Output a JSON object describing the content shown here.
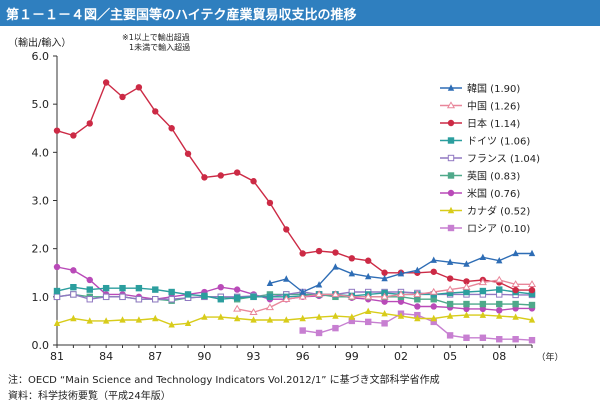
{
  "title": "第１－１－４図／主要国等のハイテク産業貿易収支比の推移",
  "notes": {
    "line1": "※1以上で輸出超過",
    "line2": "1未満で輸入超過"
  },
  "footer": {
    "note": "注：OECD “Main Science and Technology Indicators Vol.2012/1” に基づき文部科学省作成",
    "source": "資料：科学技術要覧（平成24年版）"
  },
  "chart_data": {
    "type": "line",
    "title": "第１－１－４図／主要国等のハイテク産業貿易収支比の推移",
    "ylabel": "（輸出/輸入）",
    "xlabel": "（年）",
    "ylim": [
      0,
      6
    ],
    "yticks": [
      "0.0",
      "1.0",
      "2.0",
      "3.0",
      "4.0",
      "5.0",
      "6.0"
    ],
    "x": [
      1981,
      1982,
      1983,
      1984,
      1985,
      1986,
      1987,
      1988,
      1989,
      1990,
      1991,
      1992,
      1993,
      1994,
      1995,
      1996,
      1997,
      1998,
      1999,
      2000,
      2001,
      2002,
      2003,
      2004,
      2005,
      2006,
      2007,
      2008,
      2009,
      2010
    ],
    "xticks": [
      "81",
      "84",
      "87",
      "90",
      "93",
      "96",
      "99",
      "02",
      "05",
      "08"
    ],
    "grid": false,
    "legend_position": "right",
    "series": [
      {
        "name": "韓国 (1.90)",
        "color": "#2e6db5",
        "marker": "triangle",
        "values": [
          null,
          null,
          null,
          null,
          null,
          null,
          null,
          null,
          null,
          null,
          null,
          null,
          null,
          1.28,
          1.37,
          1.1,
          1.25,
          1.62,
          1.48,
          1.42,
          1.38,
          1.48,
          1.55,
          1.76,
          1.72,
          1.68,
          1.82,
          1.75,
          1.9,
          1.9
        ]
      },
      {
        "name": "中国 (1.26)",
        "color": "#e9869a",
        "marker": "triangle-open",
        "values": [
          null,
          null,
          null,
          null,
          null,
          null,
          null,
          null,
          null,
          null,
          null,
          0.75,
          0.68,
          0.78,
          0.95,
          1.0,
          1.05,
          1.05,
          1.0,
          1.0,
          1.0,
          1.05,
          1.05,
          1.1,
          1.15,
          1.2,
          1.3,
          1.35,
          1.26,
          1.26
        ]
      },
      {
        "name": "日本 (1.14)",
        "color": "#cc2a45",
        "marker": "circle",
        "values": [
          4.45,
          4.35,
          4.6,
          5.45,
          5.15,
          5.35,
          4.85,
          4.5,
          3.97,
          3.48,
          3.52,
          3.58,
          3.4,
          2.95,
          2.4,
          1.9,
          1.95,
          1.92,
          1.8,
          1.75,
          1.5,
          1.5,
          1.5,
          1.52,
          1.38,
          1.32,
          1.35,
          1.3,
          1.14,
          1.14
        ]
      },
      {
        "name": "ドイツ (1.06)",
        "color": "#2b9e9e",
        "marker": "square",
        "values": [
          1.12,
          1.2,
          1.15,
          1.18,
          1.18,
          1.18,
          1.15,
          1.1,
          1.05,
          1.02,
          0.95,
          0.98,
          1.0,
          1.0,
          1.0,
          1.02,
          1.05,
          1.05,
          1.02,
          1.05,
          1.08,
          1.05,
          1.05,
          1.05,
          1.08,
          1.1,
          1.12,
          1.15,
          1.1,
          1.06
        ]
      },
      {
        "name": "フランス (1.04)",
        "color": "#9178c2",
        "marker": "square-open",
        "values": [
          1.0,
          1.05,
          0.95,
          1.0,
          1.0,
          0.95,
          0.95,
          0.95,
          0.98,
          1.0,
          1.0,
          1.0,
          1.02,
          1.0,
          1.05,
          1.1,
          1.05,
          1.05,
          1.1,
          1.1,
          1.1,
          1.1,
          1.08,
          1.05,
          1.05,
          1.05,
          1.05,
          1.05,
          1.04,
          1.04
        ]
      },
      {
        "name": "英国 (0.83)",
        "color": "#4fa98a",
        "marker": "square",
        "values": [
          1.0,
          1.05,
          1.0,
          1.0,
          1.0,
          0.95,
          0.95,
          0.92,
          0.98,
          1.0,
          1.0,
          0.95,
          1.0,
          1.05,
          1.05,
          1.05,
          1.05,
          1.0,
          1.0,
          1.0,
          1.0,
          1.0,
          0.95,
          0.95,
          0.85,
          0.85,
          0.85,
          0.85,
          0.85,
          0.83
        ]
      },
      {
        "name": "米国 (0.76)",
        "color": "#b94ab8",
        "marker": "circle",
        "values": [
          1.62,
          1.55,
          1.35,
          1.05,
          1.05,
          1.0,
          0.95,
          1.0,
          1.05,
          1.1,
          1.2,
          1.15,
          1.05,
          0.95,
          0.95,
          1.0,
          1.02,
          1.05,
          0.98,
          0.95,
          0.9,
          0.9,
          0.8,
          0.8,
          0.78,
          0.75,
          0.75,
          0.72,
          0.76,
          0.76
        ]
      },
      {
        "name": "カナダ (0.52)",
        "color": "#d8cc1a",
        "marker": "triangle",
        "values": [
          0.45,
          0.55,
          0.5,
          0.5,
          0.52,
          0.52,
          0.55,
          0.42,
          0.45,
          0.58,
          0.58,
          0.55,
          0.52,
          0.52,
          0.52,
          0.55,
          0.58,
          0.6,
          0.58,
          0.7,
          0.65,
          0.6,
          0.55,
          0.55,
          0.6,
          0.62,
          0.62,
          0.6,
          0.58,
          0.52
        ]
      },
      {
        "name": "ロシア (0.10)",
        "color": "#c77fd1",
        "marker": "square",
        "values": [
          null,
          null,
          null,
          null,
          null,
          null,
          null,
          null,
          null,
          null,
          null,
          null,
          null,
          null,
          null,
          0.3,
          0.25,
          0.35,
          0.5,
          0.48,
          0.45,
          0.65,
          0.62,
          0.48,
          0.2,
          0.15,
          0.15,
          0.12,
          0.12,
          0.1
        ]
      }
    ]
  }
}
